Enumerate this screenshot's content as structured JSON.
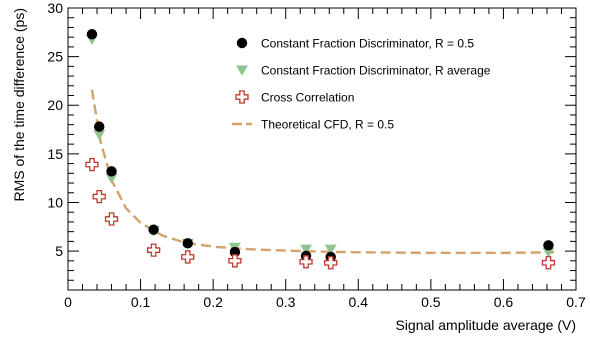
{
  "chart_data": {
    "type": "scatter",
    "xlabel": "Signal amplitude average (V)",
    "ylabel": "RMS of the time difference (ps)",
    "xlim": [
      0,
      0.7
    ],
    "ylim": [
      1,
      30
    ],
    "x_ticks": [
      "0",
      "0.1",
      "0.2",
      "0.3",
      "0.4",
      "0.5",
      "0.6",
      "0.7"
    ],
    "y_ticks": [
      "5",
      "10",
      "15",
      "20",
      "25",
      "30"
    ],
    "legend_position": "top-right",
    "series": [
      {
        "name": "Constant Fraction Discriminator, R = 0.5",
        "marker": "filled-circle",
        "color": "#000000",
        "x": [
          0.033,
          0.043,
          0.06,
          0.118,
          0.165,
          0.23,
          0.328,
          0.362,
          0.662
        ],
        "y": [
          27.3,
          17.8,
          13.2,
          7.2,
          5.8,
          4.9,
          4.5,
          4.4,
          5.6
        ]
      },
      {
        "name": "Constant Fraction Discriminator, R average",
        "marker": "triangle-down",
        "color": "#8fc48f",
        "x": [
          0.033,
          0.043,
          0.06,
          0.118,
          0.165,
          0.23,
          0.328,
          0.362,
          0.662
        ],
        "y": [
          26.8,
          17.0,
          12.5,
          7.1,
          5.8,
          5.4,
          5.2,
          5.2,
          4.9
        ]
      },
      {
        "name": "Cross Correlation",
        "marker": "open-cross",
        "color": "#c0392b",
        "x": [
          0.033,
          0.043,
          0.06,
          0.118,
          0.165,
          0.23,
          0.328,
          0.362,
          0.662
        ],
        "y": [
          13.9,
          10.6,
          8.3,
          5.1,
          4.4,
          4.0,
          3.9,
          3.8,
          3.8
        ]
      },
      {
        "name": "Theoretical CFD, R = 0.5",
        "marker": "dashed-line",
        "color": "#d4a26a",
        "x": [
          0.033,
          0.045,
          0.06,
          0.08,
          0.1,
          0.13,
          0.16,
          0.2,
          0.25,
          0.3,
          0.35,
          0.4,
          0.45,
          0.5,
          0.55,
          0.6,
          0.65,
          0.67
        ],
        "y": [
          21.6,
          16.2,
          12.3,
          9.4,
          7.9,
          6.6,
          5.9,
          5.45,
          5.2,
          5.05,
          4.95,
          4.88,
          4.85,
          4.83,
          4.82,
          4.83,
          4.86,
          4.88
        ]
      }
    ]
  }
}
